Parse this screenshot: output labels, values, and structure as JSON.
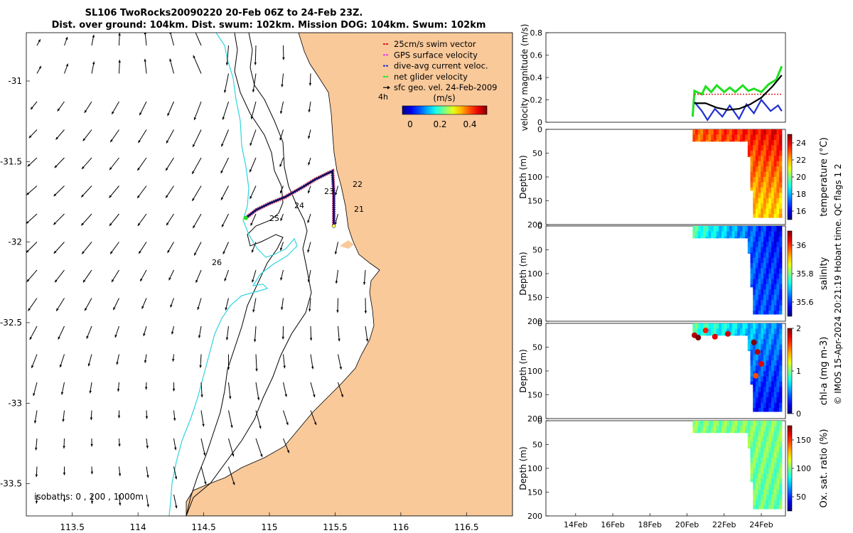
{
  "figure": {
    "title_line1": "SL106 TwoRocks20090220 20-Feb 06Z to 24-Feb 23Z.",
    "title_line2": "Dist. over ground: 104km. Dist. swum: 102km. Mission DOG: 104km. Swum: 102km",
    "copyright": "© IMOS 15-Apr-2024 20:21:19 Hobart time. QC flags 1  2"
  },
  "colors": {
    "land": "#f9c99a",
    "isobath": "#000000",
    "cyan_isobath": "#2fd4e0",
    "swim_vector": "#e02020",
    "gps_velocity": "#e040e0",
    "current": "#2030d0",
    "net_velocity": "#20e020",
    "geo_velocity": "#000000"
  },
  "map": {
    "legend": [
      {
        "label": "25cm/s swim vector",
        "color": "#e02020",
        "icon": "dash-line"
      },
      {
        "label": "GPS surface velocity",
        "color": "#e040e0",
        "icon": "dash-line"
      },
      {
        "label": "dive-avg current veloc.",
        "color": "#2030d0",
        "icon": "dash-line"
      },
      {
        "label": "net glider velocity",
        "color": "#20e020",
        "icon": "dash-line"
      },
      {
        "label": "sfc geo. vel. 24-Feb-2009",
        "color": "#000000",
        "icon": "arrow"
      }
    ],
    "marker_4h": "4h",
    "colorbar_title": "(m/s)",
    "colorbar_ticks": [
      "0",
      "0.2",
      "0.4"
    ],
    "isobaths_label": "isobaths: 0 , 200 , 1000m",
    "day_labels": [
      "21",
      "22",
      "23",
      "24",
      "25",
      "26"
    ]
  },
  "chart_data": [
    {
      "type": "map",
      "xlim": [
        113.15,
        116.85
      ],
      "ylim": [
        -33.7,
        -30.7
      ],
      "x_ticks": [
        "113.5",
        "114",
        "114.5",
        "115",
        "115.5",
        "116",
        "116.5"
      ],
      "y_ticks": [
        "-31",
        "-31.5",
        "-32",
        "-32.5",
        "-33",
        "-33.5"
      ],
      "track": [
        [
          114.82,
          -31.85
        ],
        [
          114.9,
          -31.8
        ],
        [
          115.0,
          -31.76
        ],
        [
          115.12,
          -31.72
        ],
        [
          115.25,
          -31.66
        ],
        [
          115.35,
          -31.61
        ],
        [
          115.45,
          -31.57
        ],
        [
          115.48,
          -31.56
        ],
        [
          115.49,
          -31.7
        ],
        [
          115.49,
          -31.9
        ]
      ],
      "velocity_arrows": "surface geostrophic velocity arrows on grid"
    },
    {
      "type": "line",
      "ylabel": "velocity magnitude (m/s)",
      "ylim": [
        0,
        0.8
      ],
      "y_ticks": [
        "0",
        "0.2",
        "0.4",
        "0.6",
        "0.8"
      ],
      "series": [
        {
          "color": "#20e020",
          "values": [
            [
              20.3,
              0.05
            ],
            [
              20.4,
              0.28
            ],
            [
              20.8,
              0.25
            ],
            [
              21.0,
              0.32
            ],
            [
              21.3,
              0.27
            ],
            [
              21.6,
              0.33
            ],
            [
              22.0,
              0.27
            ],
            [
              22.3,
              0.31
            ],
            [
              22.6,
              0.27
            ],
            [
              23.0,
              0.33
            ],
            [
              23.3,
              0.28
            ],
            [
              23.6,
              0.3
            ],
            [
              24.0,
              0.27
            ],
            [
              24.4,
              0.34
            ],
            [
              24.8,
              0.38
            ],
            [
              25.1,
              0.5
            ]
          ]
        },
        {
          "color": "#e02020",
          "values": [
            [
              20.4,
              0.25
            ],
            [
              25.1,
              0.25
            ]
          ]
        },
        {
          "color": "#2030d0",
          "values": [
            [
              20.4,
              0.18
            ],
            [
              20.8,
              0.1
            ],
            [
              21.1,
              0.02
            ],
            [
              21.5,
              0.12
            ],
            [
              21.9,
              0.05
            ],
            [
              22.3,
              0.15
            ],
            [
              22.8,
              0.03
            ],
            [
              23.2,
              0.16
            ],
            [
              23.6,
              0.08
            ],
            [
              24.0,
              0.2
            ],
            [
              24.5,
              0.1
            ],
            [
              24.9,
              0.15
            ],
            [
              25.1,
              0.1
            ]
          ]
        },
        {
          "color": "#000000",
          "values": [
            [
              20.4,
              0.17
            ],
            [
              21.0,
              0.17
            ],
            [
              21.6,
              0.13
            ],
            [
              22.2,
              0.11
            ],
            [
              22.8,
              0.12
            ],
            [
              23.4,
              0.16
            ],
            [
              24.0,
              0.22
            ],
            [
              24.6,
              0.32
            ],
            [
              25.1,
              0.42
            ]
          ]
        }
      ]
    },
    {
      "type": "heatmap",
      "ylabel": "Depth (m)",
      "colorbar_label": "temperature (°C)",
      "y_ticks": [
        "0",
        "50",
        "100",
        "150",
        "200"
      ],
      "cbar_ticks": [
        "16",
        "18",
        "20",
        "22",
        "24"
      ],
      "clim": [
        15,
        25
      ]
    },
    {
      "type": "heatmap",
      "ylabel": "Depth (m)",
      "colorbar_label": "salinity",
      "y_ticks": [
        "0",
        "50",
        "100",
        "150",
        "200"
      ],
      "cbar_ticks": [
        "35.6",
        "35.8",
        "36"
      ],
      "clim": [
        35.5,
        36.1
      ]
    },
    {
      "type": "heatmap",
      "ylabel": "Depth (m)",
      "colorbar_label": "chl-a (mg m-3)",
      "y_ticks": [
        "0",
        "50",
        "100",
        "150",
        "200"
      ],
      "cbar_ticks": [
        "0",
        "1",
        "2"
      ],
      "clim": [
        0,
        2
      ]
    },
    {
      "type": "heatmap",
      "ylabel": "Depth (m)",
      "colorbar_label": "Ox. sat. ratio (%)",
      "y_ticks": [
        "0",
        "50",
        "100",
        "150",
        "200"
      ],
      "cbar_ticks": [
        "50",
        "100",
        "150"
      ],
      "clim": [
        25,
        175
      ],
      "x_ticks": [
        "14Feb",
        "16Feb",
        "18Feb",
        "20Feb",
        "22Feb",
        "24Feb"
      ]
    }
  ]
}
